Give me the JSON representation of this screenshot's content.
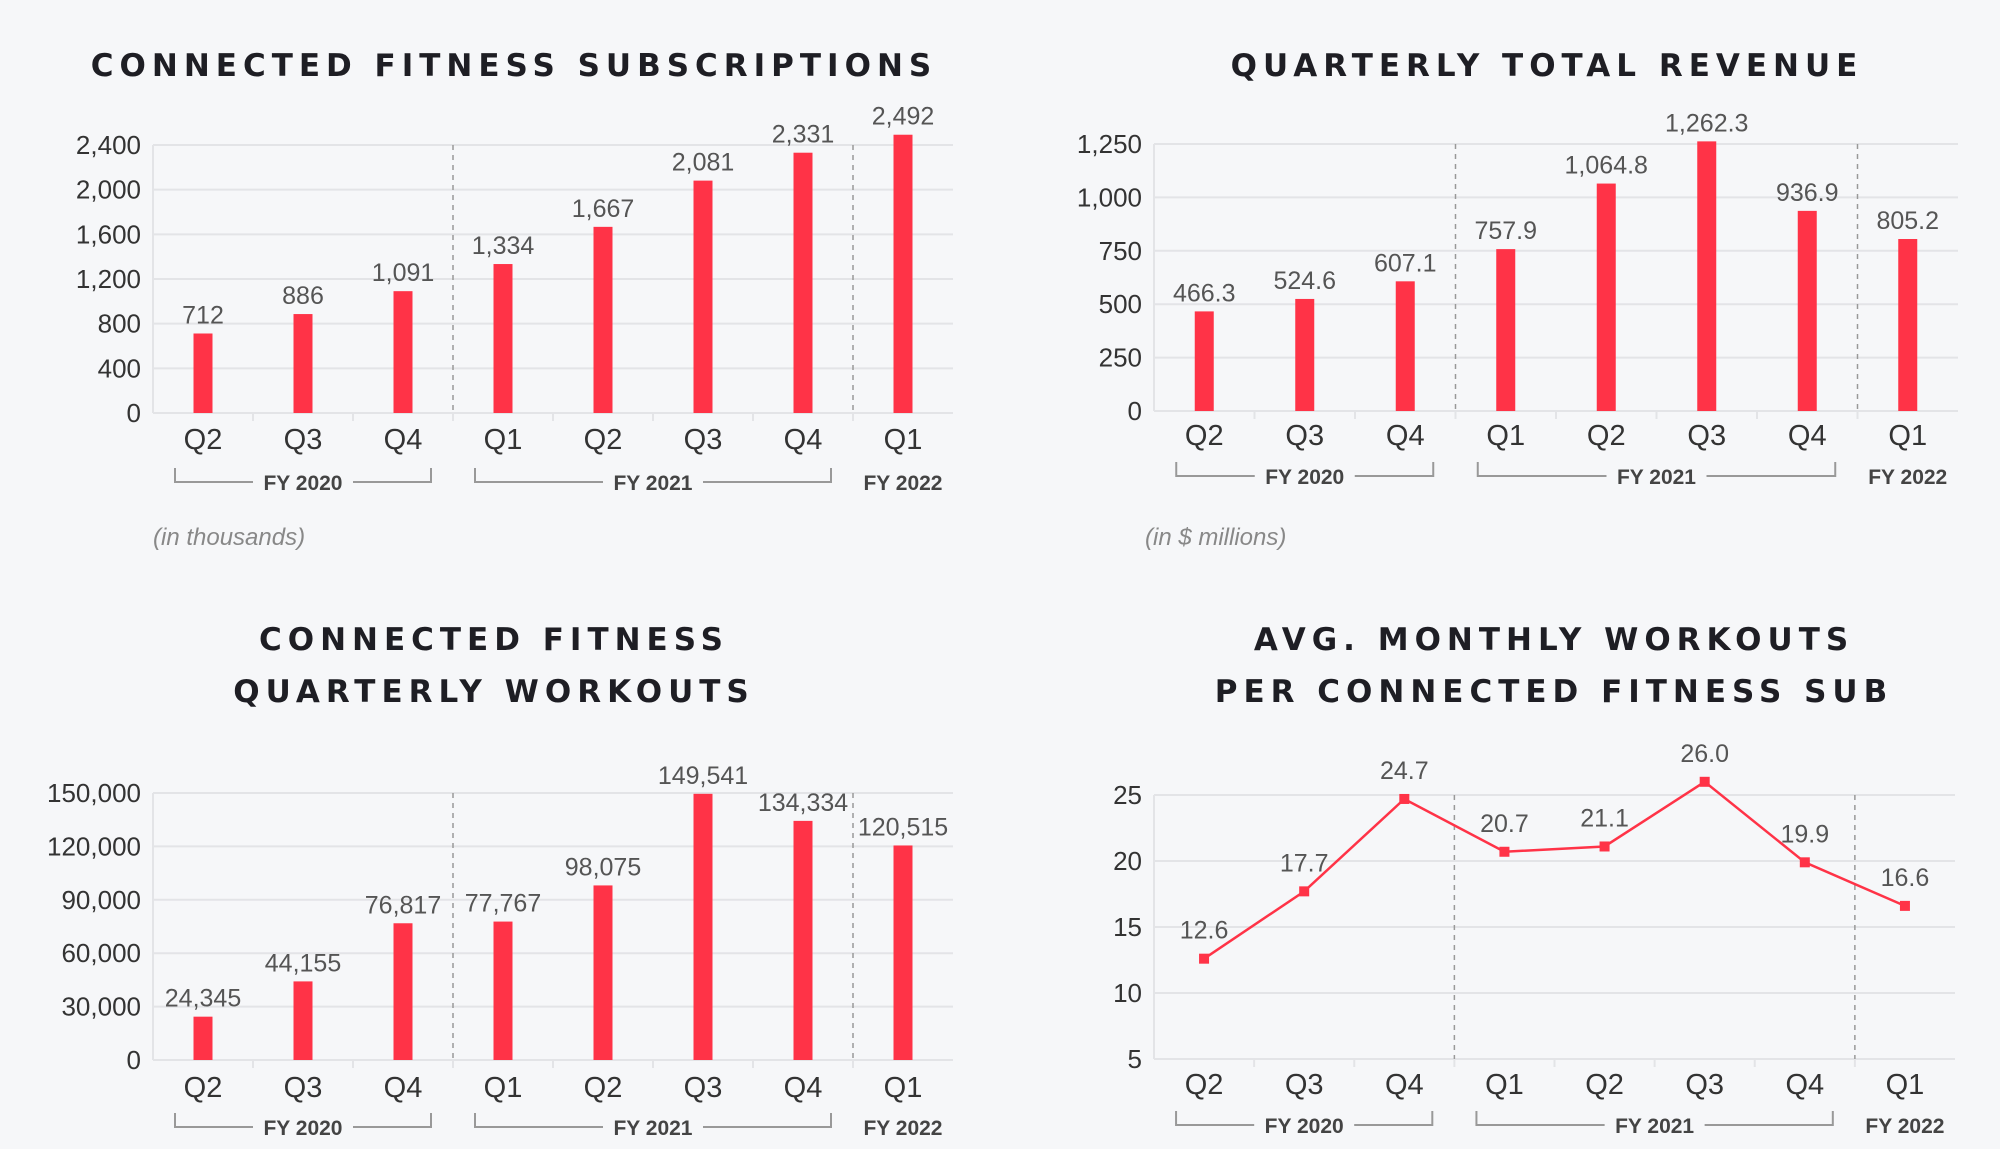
{
  "colors": {
    "accent": "#ff3347",
    "grid": "#e3e4e7",
    "background": "#f6f7f9"
  },
  "chart_data": [
    {
      "type": "bar",
      "title": [
        "CONNECTED FITNESS SUBSCRIPTIONS"
      ],
      "categories": [
        "Q2",
        "Q3",
        "Q4",
        "Q1",
        "Q2",
        "Q3",
        "Q4",
        "Q1"
      ],
      "fiscal_years": [
        {
          "label": "FY 2020",
          "quarters": 3
        },
        {
          "label": "FY 2021",
          "quarters": 4
        },
        {
          "label": "FY 2022",
          "quarters": 1
        }
      ],
      "values": [
        712,
        886,
        1091,
        1334,
        1667,
        2081,
        2331,
        2492
      ],
      "value_labels": [
        "712",
        "886",
        "1,091",
        "1,334",
        "1,667",
        "2,081",
        "2,331",
        "2,492"
      ],
      "yticks": [
        0,
        400,
        800,
        1200,
        1600,
        2000,
        2400
      ],
      "ytick_labels": [
        "0",
        "400",
        "800",
        "1,200",
        "1,600",
        "2,000",
        "2,400"
      ],
      "ylim": [
        0,
        2400
      ],
      "note": "(in thousands)",
      "grid": true
    },
    {
      "type": "bar",
      "title": [
        "QUARTERLY TOTAL REVENUE"
      ],
      "categories": [
        "Q2",
        "Q3",
        "Q4",
        "Q1",
        "Q2",
        "Q3",
        "Q4",
        "Q1"
      ],
      "fiscal_years": [
        {
          "label": "FY 2020",
          "quarters": 3
        },
        {
          "label": "FY 2021",
          "quarters": 4
        },
        {
          "label": "FY 2022",
          "quarters": 1
        }
      ],
      "values": [
        466.3,
        524.6,
        607.1,
        757.9,
        1064.8,
        1262.3,
        936.9,
        805.2
      ],
      "value_labels": [
        "466.3",
        "524.6",
        "607.1",
        "757.9",
        "1,064.8",
        "1,262.3",
        "936.9",
        "805.2"
      ],
      "yticks": [
        0,
        250,
        500,
        750,
        1000,
        1250
      ],
      "ytick_labels": [
        "0",
        "250",
        "500",
        "750",
        "1,000",
        "1,250"
      ],
      "ylim": [
        0,
        1250
      ],
      "note": "(in $ millions)",
      "grid": true
    },
    {
      "type": "bar",
      "title": [
        "CONNECTED FITNESS",
        "QUARTERLY WORKOUTS"
      ],
      "categories": [
        "Q2",
        "Q3",
        "Q4",
        "Q1",
        "Q2",
        "Q3",
        "Q4",
        "Q1"
      ],
      "fiscal_years": [
        {
          "label": "FY 2020",
          "quarters": 3
        },
        {
          "label": "FY 2021",
          "quarters": 4
        },
        {
          "label": "FY 2022",
          "quarters": 1
        }
      ],
      "values": [
        24345,
        44155,
        76817,
        77767,
        98075,
        149541,
        134334,
        120515
      ],
      "value_labels": [
        "24,345",
        "44,155",
        "76,817",
        "77,767",
        "98,075",
        "149,541",
        "134,334",
        "120,515"
      ],
      "yticks": [
        0,
        30000,
        60000,
        90000,
        120000,
        150000
      ],
      "ytick_labels": [
        "0",
        "30,000",
        "60,000",
        "90,000",
        "120,000",
        "150,000"
      ],
      "ylim": [
        0,
        150000
      ],
      "grid": true
    },
    {
      "type": "line",
      "title": [
        "AVG. MONTHLY WORKOUTS",
        "PER CONNECTED FITNESS SUB"
      ],
      "categories": [
        "Q2",
        "Q3",
        "Q4",
        "Q1",
        "Q2",
        "Q3",
        "Q4",
        "Q1"
      ],
      "fiscal_years": [
        {
          "label": "FY 2020",
          "quarters": 3
        },
        {
          "label": "FY 2021",
          "quarters": 4
        },
        {
          "label": "FY 2022",
          "quarters": 1
        }
      ],
      "values": [
        12.6,
        17.7,
        24.7,
        20.7,
        21.1,
        26.0,
        19.9,
        16.6
      ],
      "value_labels": [
        "12.6",
        "17.7",
        "24.7",
        "20.7",
        "21.1",
        "26.0",
        "19.9",
        "16.6"
      ],
      "yticks": [
        5,
        10,
        15,
        20,
        25
      ],
      "ytick_labels": [
        "5",
        "10",
        "15",
        "20",
        "25"
      ],
      "ylim": [
        5,
        25
      ],
      "grid": true
    }
  ]
}
